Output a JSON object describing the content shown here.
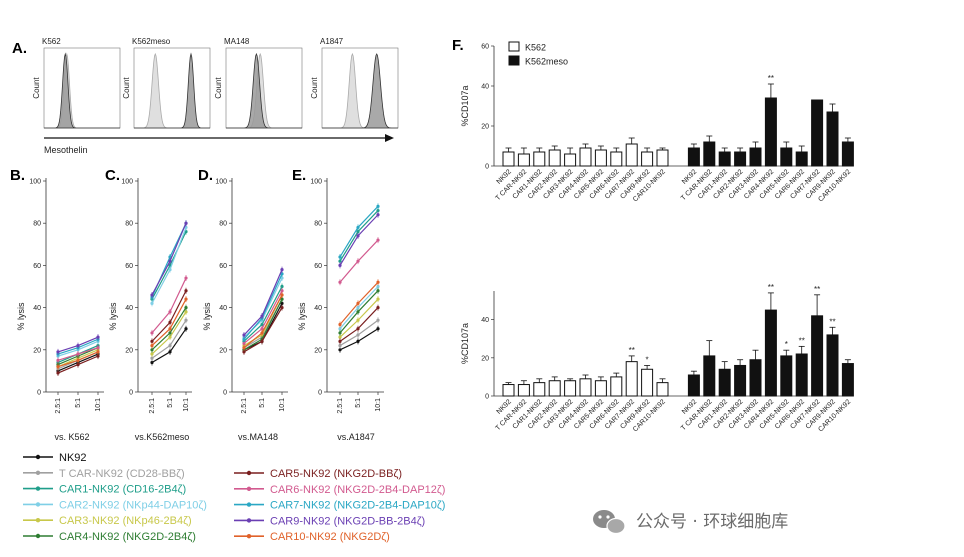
{
  "panel_A": {
    "letter": "A.",
    "xlabel": "Mesothelin",
    "ylabel": "Count",
    "cell_lines": [
      "K562",
      "K562meso",
      "MA148",
      "A1847"
    ],
    "histograms": [
      {
        "line": "K562",
        "peaks": [
          {
            "center": 0.28,
            "width": 0.05,
            "kind": "dark"
          },
          {
            "center": 0.3,
            "width": 0.05,
            "kind": "light"
          }
        ]
      },
      {
        "line": "K562meso",
        "peaks": [
          {
            "center": 0.28,
            "width": 0.06,
            "kind": "light"
          },
          {
            "center": 0.75,
            "width": 0.05,
            "kind": "dark"
          }
        ]
      },
      {
        "line": "MA148",
        "peaks": [
          {
            "center": 0.4,
            "width": 0.06,
            "kind": "dark"
          },
          {
            "center": 0.45,
            "width": 0.06,
            "kind": "light"
          }
        ]
      },
      {
        "line": "A1847",
        "peaks": [
          {
            "center": 0.4,
            "width": 0.06,
            "kind": "light"
          },
          {
            "center": 0.72,
            "width": 0.07,
            "kind": "dark"
          }
        ]
      }
    ]
  },
  "chart_data": [
    {
      "panel": "B.",
      "type": "line",
      "xlabel": "vs. K562",
      "ylabel": "% lysis",
      "categories": [
        "2.5:1",
        "5:1",
        "10:1"
      ],
      "ylim": [
        0,
        100
      ],
      "yticks": [
        0,
        20,
        40,
        60,
        80,
        100
      ],
      "series": [
        {
          "name": "NK92",
          "values": [
            10,
            14,
            18
          ]
        },
        {
          "name": "T CAR-NK92 (CD28-BBζ)",
          "values": [
            11,
            15,
            19
          ]
        },
        {
          "name": "CAR1-NK92 (CD16-2B4ζ)",
          "values": [
            14,
            18,
            22
          ]
        },
        {
          "name": "CAR2-NK92 (NKp44-DAP10ζ)",
          "values": [
            17,
            20,
            24
          ]
        },
        {
          "name": "CAR3-NK92 (NKp46-2B4ζ)",
          "values": [
            12,
            16,
            20
          ]
        },
        {
          "name": "CAR4-NK92 (NKG2D-2B4ζ)",
          "values": [
            13,
            17,
            21
          ]
        },
        {
          "name": "CAR5-NK92 (NKG2D-BBζ)",
          "values": [
            9,
            13,
            17
          ]
        },
        {
          "name": "CAR6-NK92 (NKG2D-2B4-DAP12ζ)",
          "values": [
            15,
            18,
            21
          ]
        },
        {
          "name": "CAR7-NK92 (NKG2D-2B4-DAP10ζ)",
          "values": [
            18,
            21,
            25
          ]
        },
        {
          "name": "CAR9-NK92 (NKG2D-BB-2B4ζ)",
          "values": [
            19,
            22,
            26
          ]
        },
        {
          "name": "CAR10-NK92 (NKG2Dζ)",
          "values": [
            12,
            15,
            19
          ]
        }
      ]
    },
    {
      "panel": "C.",
      "type": "line",
      "xlabel": "vs.K562meso",
      "ylabel": "% lysis",
      "categories": [
        "2.5:1",
        "5:1",
        "10:1"
      ],
      "ylim": [
        0,
        100
      ],
      "yticks": [
        0,
        20,
        40,
        60,
        80,
        100
      ],
      "series": [
        {
          "name": "NK92",
          "values": [
            14,
            19,
            30
          ]
        },
        {
          "name": "T CAR-NK92 (CD28-BBζ)",
          "values": [
            16,
            22,
            34
          ]
        },
        {
          "name": "CAR1-NK92 (CD16-2B4ζ)",
          "values": [
            44,
            60,
            76
          ]
        },
        {
          "name": "CAR2-NK92 (NKp44-DAP10ζ)",
          "values": [
            42,
            58,
            78
          ]
        },
        {
          "name": "CAR3-NK92 (NKp46-2B4ζ)",
          "values": [
            18,
            26,
            38
          ]
        },
        {
          "name": "CAR4-NK92 (NKG2D-2B4ζ)",
          "values": [
            20,
            28,
            40
          ]
        },
        {
          "name": "CAR5-NK92 (NKG2D-BBζ)",
          "values": [
            24,
            33,
            48
          ]
        },
        {
          "name": "CAR6-NK92 (NKG2D-2B4-DAP12ζ)",
          "values": [
            28,
            38,
            54
          ]
        },
        {
          "name": "CAR7-NK92 (NKG2D-2B4-DAP10ζ)",
          "values": [
            45,
            64,
            80
          ]
        },
        {
          "name": "CAR9-NK92 (NKG2D-BB-2B4ζ)",
          "values": [
            46,
            62,
            80
          ]
        },
        {
          "name": "CAR10-NK92 (NKG2Dζ)",
          "values": [
            22,
            30,
            44
          ]
        }
      ]
    },
    {
      "panel": "D.",
      "type": "line",
      "xlabel": "vs.MA148",
      "ylabel": "% lysis",
      "categories": [
        "2.5:1",
        "5:1",
        "10:1"
      ],
      "ylim": [
        0,
        100
      ],
      "yticks": [
        0,
        20,
        40,
        60,
        80,
        100
      ],
      "series": [
        {
          "name": "NK92",
          "values": [
            20,
            24,
            42
          ]
        },
        {
          "name": "T CAR-NK92 (CD28-BBζ)",
          "values": [
            21,
            26,
            44
          ]
        },
        {
          "name": "CAR1-NK92 (CD16-2B4ζ)",
          "values": [
            24,
            32,
            50
          ]
        },
        {
          "name": "CAR2-NK92 (NKp44-DAP10ζ)",
          "values": [
            26,
            34,
            54
          ]
        },
        {
          "name": "CAR3-NK92 (NKp46-2B4ζ)",
          "values": [
            22,
            27,
            46
          ]
        },
        {
          "name": "CAR4-NK92 (NKG2D-2B4ζ)",
          "values": [
            20,
            25,
            44
          ]
        },
        {
          "name": "CAR5-NK92 (NKG2D-BBζ)",
          "values": [
            19,
            24,
            40
          ]
        },
        {
          "name": "CAR6-NK92 (NKG2D-2B4-DAP12ζ)",
          "values": [
            23,
            30,
            48
          ]
        },
        {
          "name": "CAR7-NK92 (NKG2D-2B4-DAP10ζ)",
          "values": [
            25,
            35,
            56
          ]
        },
        {
          "name": "CAR9-NK92 (NKG2D-BB-2B4ζ)",
          "values": [
            27,
            36,
            58
          ]
        },
        {
          "name": "CAR10-NK92 (NKG2Dζ)",
          "values": [
            21,
            28,
            46
          ]
        }
      ]
    },
    {
      "panel": "E.",
      "type": "line",
      "xlabel": "vs.A1847",
      "ylabel": "% lysis",
      "categories": [
        "2.5:1",
        "5:1",
        "10:1"
      ],
      "ylim": [
        0,
        100
      ],
      "yticks": [
        0,
        20,
        40,
        60,
        80,
        100
      ],
      "series": [
        {
          "name": "NK92",
          "values": [
            20,
            24,
            30
          ]
        },
        {
          "name": "T CAR-NK92 (CD28-BBζ)",
          "values": [
            22,
            27,
            34
          ]
        },
        {
          "name": "CAR1-NK92 (CD16-2B4ζ)",
          "values": [
            62,
            76,
            86
          ]
        },
        {
          "name": "CAR2-NK92 (NKp44-DAP10ζ)",
          "values": [
            30,
            40,
            50
          ]
        },
        {
          "name": "CAR3-NK92 (NKp46-2B4ζ)",
          "values": [
            26,
            34,
            44
          ]
        },
        {
          "name": "CAR4-NK92 (NKG2D-2B4ζ)",
          "values": [
            28,
            38,
            48
          ]
        },
        {
          "name": "CAR5-NK92 (NKG2D-BBζ)",
          "values": [
            24,
            30,
            40
          ]
        },
        {
          "name": "CAR6-NK92 (NKG2D-2B4-DAP12ζ)",
          "values": [
            52,
            62,
            72
          ]
        },
        {
          "name": "CAR7-NK92 (NKG2D-2B4-DAP10ζ)",
          "values": [
            64,
            78,
            88
          ]
        },
        {
          "name": "CAR9-NK92 (NKG2D-BB-2B4ζ)",
          "values": [
            60,
            74,
            84
          ]
        },
        {
          "name": "CAR10-NK92 (NKG2Dζ)",
          "values": [
            32,
            42,
            52
          ]
        }
      ]
    },
    {
      "panel": "F.",
      "type": "bar",
      "ylabel": "%CD107a",
      "ylim": [
        0,
        60
      ],
      "yticks": [
        0,
        20,
        40,
        60
      ],
      "legend": [
        "K562",
        "K562meso"
      ],
      "categories": [
        "NK92",
        "T CAR-NK92",
        "CAR1-NK92",
        "CAR2-NK92",
        "CAR3-NK92",
        "CAR4-NK92",
        "CAR5-NK92",
        "CAR6-NK92",
        "CAR7-NK92",
        "CAR9-NK92",
        "CAR10-NK92"
      ],
      "series": [
        {
          "name": "K562",
          "values": [
            7,
            6,
            7,
            8,
            6,
            9,
            8,
            7,
            11,
            7,
            8
          ],
          "errors": [
            2,
            3,
            2,
            2,
            3,
            2,
            2,
            2,
            3,
            2,
            1
          ]
        },
        {
          "name": "K562meso",
          "values": [
            9,
            12,
            7,
            7,
            9,
            34,
            9,
            7,
            33,
            27,
            12
          ],
          "errors": [
            2,
            3,
            2,
            2,
            3,
            7,
            3,
            3,
            0,
            4,
            2
          ]
        }
      ],
      "significance": {
        "K562meso": [
          "",
          "",
          "",
          "",
          "",
          "**",
          "",
          "",
          "",
          "",
          ""
        ]
      }
    },
    {
      "panel": "",
      "type": "bar",
      "ylabel": "%CD107a",
      "ylim": [
        0,
        55
      ],
      "yticks": [
        0,
        20,
        40
      ],
      "categories": [
        "NK92",
        "T CAR-NK92",
        "CAR1-NK92",
        "CAR2-NK92",
        "CAR3-NK92",
        "CAR4-NK92",
        "CAR5-NK92",
        "CAR6-NK92",
        "CAR7-NK92",
        "CAR9-NK92",
        "CAR10-NK92"
      ],
      "series": [
        {
          "name": "K562",
          "values": [
            6,
            6,
            7,
            8,
            8,
            9,
            8,
            10,
            18,
            14,
            7
          ],
          "errors": [
            1,
            2,
            2,
            2,
            1,
            2,
            2,
            2,
            3,
            2,
            2
          ]
        },
        {
          "name": "K562meso",
          "values": [
            11,
            21,
            14,
            16,
            19,
            45,
            21,
            22,
            42,
            32,
            17
          ],
          "errors": [
            2,
            8,
            4,
            3,
            5,
            9,
            3,
            4,
            11,
            4,
            2
          ]
        }
      ],
      "significance": {
        "K562": [
          "",
          "",
          "",
          "",
          "",
          "",
          "",
          "",
          "**",
          "*",
          ""
        ],
        "K562meso": [
          "",
          "",
          "",
          "",
          "",
          "**",
          "*",
          "**",
          "**",
          "**",
          ""
        ]
      }
    }
  ],
  "legend_left": [
    {
      "label": "NK92",
      "color": "#111111"
    },
    {
      "label": "T CAR-NK92 (CD28-BBζ)",
      "color": "#a0a0a0"
    },
    {
      "label": "CAR1-NK92 (CD16-2B4ζ)",
      "color": "#1f9e8a"
    },
    {
      "label": "CAR2-NK92 (NKp44-DAP10ζ)",
      "color": "#7fcfe6"
    },
    {
      "label": "CAR3-NK92 (NKp46-2B4ζ)",
      "color": "#c8c84a"
    },
    {
      "label": "CAR4-NK92 (NKG2D-2B4ζ)",
      "color": "#2e7d32"
    }
  ],
  "legend_right": [
    {
      "label": "CAR5-NK92 (NKG2D-BBζ)",
      "color": "#7a1f1f"
    },
    {
      "label": "CAR6-NK92 (NKG2D-2B4-DAP12ζ)",
      "color": "#d25a8f"
    },
    {
      "label": "CAR7-NK92 (NKG2D-2B4-DAP10ζ)",
      "color": "#2aa7c4"
    },
    {
      "label": "CAR9-NK92 (NKG2D-BB-2B4ζ)",
      "color": "#6a3fb3"
    },
    {
      "label": "CAR10-NK92 (NKG2Dζ)",
      "color": "#e0622a"
    }
  ],
  "series_colors": [
    "#111111",
    "#a0a0a0",
    "#1f9e8a",
    "#7fcfe6",
    "#c8c84a",
    "#2e7d32",
    "#7a1f1f",
    "#d25a8f",
    "#2aa7c4",
    "#6a3fb3",
    "#e0622a"
  ],
  "watermark": {
    "icon": "wechat-icon",
    "text": "公众号 · 环球细胞库"
  }
}
